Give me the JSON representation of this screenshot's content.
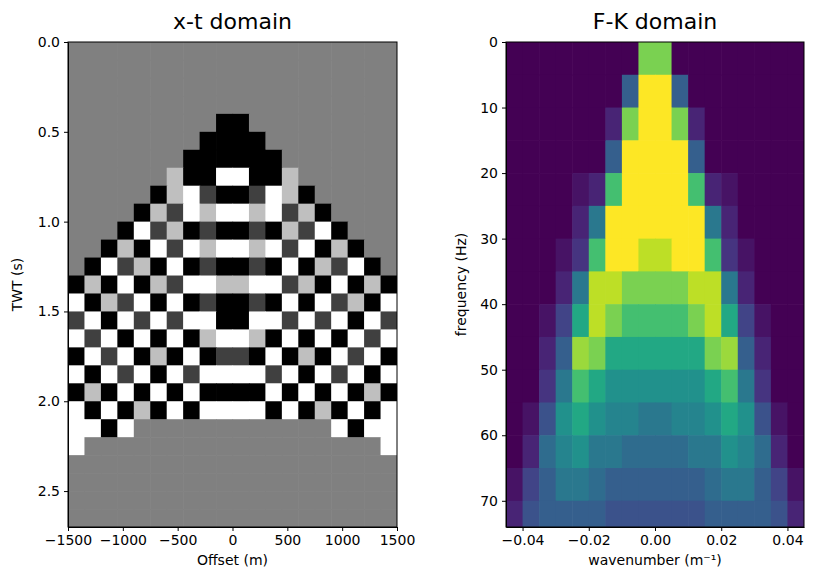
{
  "chart_data": [
    {
      "type": "heatmap",
      "title": "x-t domain",
      "x_label": "Offset (m)",
      "y_label": "TWT (s)",
      "color": "gray",
      "xlim": [
        -1500,
        1500
      ],
      "ylim": [
        0,
        2.7
      ],
      "zlim": [
        -1,
        1
      ],
      "xticks": [
        {
          "value": -1500,
          "label": "−1500"
        },
        {
          "value": -1000,
          "label": "−1000"
        },
        {
          "value": -500,
          "label": "−500"
        },
        0,
        500,
        1000,
        1500
      ],
      "yticks": [
        {
          "value": 0,
          "label": "0.0"
        },
        {
          "value": 0.5,
          "label": "0.5"
        },
        {
          "value": 1,
          "label": "1.0"
        },
        {
          "value": 1.5,
          "label": "1.5"
        },
        {
          "value": 2,
          "label": "2.0"
        },
        {
          "value": 2.5,
          "label": "2.5"
        }
      ],
      "x": [
        -1425,
        -1275,
        -1125,
        -975,
        -825,
        -675,
        -525,
        -375,
        -225,
        -75,
        75,
        225,
        375,
        525,
        675,
        825,
        975,
        1125,
        1275,
        1425
      ],
      "y": [
        0.05,
        0.15,
        0.25,
        0.35,
        0.45,
        0.55,
        0.65,
        0.75,
        0.85,
        0.95,
        1.05,
        1.15,
        1.25,
        1.35,
        1.45,
        1.55,
        1.65,
        1.75,
        1.85,
        1.95,
        2.05,
        2.15,
        2.25,
        2.35,
        2.45,
        2.55,
        2.65
      ],
      "values": [
        [
          0,
          0,
          0,
          0,
          0,
          0,
          0,
          0,
          0,
          0,
          0,
          0,
          0,
          0,
          0,
          0,
          0,
          0,
          0,
          0
        ],
        [
          0,
          0,
          0,
          0,
          0,
          0,
          0,
          0,
          0,
          0,
          0,
          0,
          0,
          0,
          0,
          0,
          0,
          0,
          0,
          0
        ],
        [
          0,
          0,
          0,
          0,
          0,
          0,
          0,
          0,
          0,
          0,
          0,
          0,
          0,
          0,
          0,
          0,
          0,
          0,
          0,
          0
        ],
        [
          0,
          0,
          0,
          0,
          0,
          0,
          0,
          0,
          0,
          0,
          0,
          0,
          0,
          0,
          0,
          0,
          0,
          0,
          0,
          0
        ],
        [
          0,
          0,
          0,
          0,
          0,
          0,
          0,
          0,
          0,
          -1,
          -1,
          0,
          0,
          0,
          0,
          0,
          0,
          0,
          0,
          0
        ],
        [
          0,
          0,
          0,
          0,
          0,
          0,
          0,
          0,
          -1,
          -1,
          -1,
          -1,
          0,
          0,
          0,
          0,
          0,
          0,
          0,
          0
        ],
        [
          0,
          0,
          0,
          0,
          0,
          0,
          0,
          -1,
          -1,
          -1,
          -1,
          -1,
          -1,
          0,
          0,
          0,
          0,
          0,
          0,
          0
        ],
        [
          0,
          0,
          0,
          0,
          0,
          0,
          0.5,
          -1,
          -1,
          1,
          1,
          -1,
          -1,
          0.5,
          0,
          0,
          0,
          0,
          0,
          0
        ],
        [
          0,
          0,
          0,
          0,
          0,
          -1,
          0.5,
          1,
          -0.5,
          -1,
          -1,
          -0.5,
          1,
          0.5,
          -1,
          0,
          0,
          0,
          0,
          0
        ],
        [
          0,
          0,
          0,
          0,
          -1,
          0.5,
          -0.5,
          1,
          0.5,
          1,
          1,
          0.5,
          1,
          -0.5,
          0.5,
          -1,
          0,
          0,
          0,
          0
        ],
        [
          0,
          0,
          0,
          -1,
          1,
          -0.5,
          0.5,
          -1,
          -0.5,
          -1,
          -1,
          -0.5,
          -1,
          0.5,
          -0.5,
          1,
          -1,
          0,
          0,
          0
        ],
        [
          0,
          0,
          -1,
          0.5,
          -1,
          1,
          -0.5,
          1,
          0.5,
          1,
          1,
          0.5,
          1,
          -0.5,
          1,
          -1,
          0.5,
          -1,
          0,
          0
        ],
        [
          0,
          -1,
          1,
          -0.5,
          0.5,
          -1,
          1,
          -1,
          -0.5,
          -1,
          -1,
          -0.5,
          -1,
          1,
          -1,
          0.5,
          -0.5,
          1,
          -1,
          0
        ],
        [
          -1,
          0.5,
          -1,
          1,
          -1,
          0.5,
          -0.5,
          1,
          1,
          0.5,
          0.5,
          1,
          1,
          -0.5,
          0.5,
          -1,
          1,
          -1,
          0.5,
          -1
        ],
        [
          1,
          -1,
          0.5,
          -0.5,
          1,
          -1,
          1,
          -1,
          -0.5,
          -1,
          -1,
          -0.5,
          -1,
          1,
          -1,
          1,
          -0.5,
          0.5,
          -1,
          1
        ],
        [
          -0.5,
          1,
          -1,
          1,
          -0.5,
          1,
          -0.5,
          1,
          1,
          -1,
          -1,
          1,
          1,
          -0.5,
          1,
          -0.5,
          1,
          -1,
          1,
          -0.5
        ],
        [
          1,
          -0.5,
          1,
          -1,
          1,
          -1,
          1,
          -1,
          0.5,
          1,
          1,
          0.5,
          -1,
          1,
          -1,
          1,
          -1,
          1,
          -0.5,
          1
        ],
        [
          -1,
          1,
          -0.5,
          1,
          -1,
          0.5,
          -1,
          1,
          -1,
          -0.5,
          -0.5,
          -1,
          1,
          -1,
          0.5,
          -1,
          1,
          -0.5,
          1,
          -1
        ],
        [
          1,
          -1,
          1,
          -0.5,
          1,
          -1,
          1,
          -0.5,
          1,
          1,
          1,
          1,
          -0.5,
          1,
          -1,
          1,
          -0.5,
          1,
          -1,
          1
        ],
        [
          -1,
          0.5,
          -1,
          1,
          -1,
          1,
          -1,
          1,
          -1,
          -1,
          -1,
          -1,
          1,
          -1,
          1,
          -1,
          1,
          -1,
          0.5,
          -1
        ],
        [
          1,
          -1,
          1,
          -1,
          0.5,
          -1,
          1,
          -1,
          1,
          1,
          1,
          1,
          -1,
          1,
          -1,
          0.5,
          -1,
          1,
          -1,
          1
        ],
        [
          1,
          1,
          -1,
          1,
          0,
          0,
          0,
          0,
          0,
          0,
          0,
          0,
          0,
          0,
          0,
          0,
          1,
          -1,
          1,
          1
        ],
        [
          1,
          0,
          0,
          0,
          0,
          0,
          0,
          0,
          0,
          0,
          0,
          0,
          0,
          0,
          0,
          0,
          0,
          0,
          0,
          1
        ],
        [
          0,
          0,
          0,
          0,
          0,
          0,
          0,
          0,
          0,
          0,
          0,
          0,
          0,
          0,
          0,
          0,
          0,
          0,
          0,
          0
        ],
        [
          0,
          0,
          0,
          0,
          0,
          0,
          0,
          0,
          0,
          0,
          0,
          0,
          0,
          0,
          0,
          0,
          0,
          0,
          0,
          0
        ],
        [
          0,
          0,
          0,
          0,
          0,
          0,
          0,
          0,
          0,
          0,
          0,
          0,
          0,
          0,
          0,
          0,
          0,
          0,
          0,
          0
        ],
        [
          0,
          0,
          0,
          0,
          0,
          0,
          0,
          0,
          0,
          0,
          0,
          0,
          0,
          0,
          0,
          0,
          0,
          0,
          0,
          0
        ]
      ]
    },
    {
      "type": "heatmap",
      "title": "F-K domain",
      "x_label": "wavenumber (m⁻¹)",
      "y_label": "frequency (Hz)",
      "color": "viridis",
      "xlim": [
        -0.045,
        0.045
      ],
      "ylim": [
        0,
        74
      ],
      "zlim": [
        0,
        1
      ],
      "xticks": [
        {
          "value": -0.04,
          "label": "−0.04"
        },
        {
          "value": -0.02,
          "label": "−0.02"
        },
        {
          "value": 0,
          "label": "0.00"
        },
        {
          "value": 0.02,
          "label": "0.02"
        },
        {
          "value": 0.04,
          "label": "0.04"
        }
      ],
      "yticks": [
        0,
        10,
        20,
        30,
        40,
        50,
        60,
        70
      ],
      "x": [
        -0.0425,
        -0.0375,
        -0.0325,
        -0.0275,
        -0.0225,
        -0.0175,
        -0.0125,
        -0.0075,
        -0.0025,
        0.0025,
        0.0075,
        0.0125,
        0.0175,
        0.0225,
        0.0275,
        0.0325,
        0.0375,
        0.0425
      ],
      "y": [
        2.5,
        7.5,
        12.5,
        17.5,
        22.5,
        27.5,
        32.5,
        37.5,
        42.5,
        47.5,
        52.5,
        57.5,
        62.5,
        67.5,
        72.5
      ],
      "values": [
        [
          0,
          0,
          0,
          0,
          0,
          0,
          0,
          0,
          0.8,
          0.8,
          0,
          0,
          0,
          0,
          0,
          0,
          0,
          0
        ],
        [
          0,
          0,
          0,
          0,
          0,
          0,
          0,
          0.3,
          1,
          1,
          0.3,
          0,
          0,
          0,
          0,
          0,
          0,
          0
        ],
        [
          0,
          0,
          0,
          0,
          0,
          0,
          0.1,
          0.8,
          1,
          1,
          0.8,
          0.1,
          0,
          0,
          0,
          0,
          0,
          0
        ],
        [
          0,
          0,
          0,
          0,
          0,
          0,
          0.3,
          1,
          1,
          1,
          1,
          0.3,
          0,
          0,
          0,
          0,
          0,
          0
        ],
        [
          0,
          0,
          0,
          0,
          0.05,
          0.1,
          0.7,
          1,
          1,
          1,
          1,
          0.7,
          0.1,
          0.05,
          0,
          0,
          0,
          0
        ],
        [
          0,
          0,
          0,
          0,
          0.1,
          0.4,
          1,
          1,
          1,
          1,
          1,
          1,
          0.4,
          0.1,
          0,
          0,
          0,
          0
        ],
        [
          0,
          0,
          0,
          0.05,
          0.15,
          0.7,
          1,
          1,
          0.9,
          0.9,
          1,
          1,
          0.7,
          0.15,
          0.05,
          0,
          0,
          0
        ],
        [
          0,
          0,
          0,
          0.1,
          0.4,
          0.9,
          0.9,
          0.8,
          0.8,
          0.8,
          0.8,
          0.9,
          0.9,
          0.4,
          0.1,
          0,
          0,
          0
        ],
        [
          0,
          0,
          0.05,
          0.2,
          0.6,
          0.9,
          0.8,
          0.7,
          0.7,
          0.7,
          0.7,
          0.8,
          0.9,
          0.6,
          0.2,
          0.05,
          0,
          0
        ],
        [
          0,
          0,
          0.1,
          0.3,
          0.85,
          0.8,
          0.6,
          0.6,
          0.6,
          0.6,
          0.6,
          0.6,
          0.8,
          0.85,
          0.3,
          0.1,
          0,
          0
        ],
        [
          0,
          0,
          0.15,
          0.4,
          0.7,
          0.6,
          0.5,
          0.5,
          0.5,
          0.5,
          0.5,
          0.5,
          0.6,
          0.7,
          0.4,
          0.15,
          0,
          0
        ],
        [
          0,
          0.05,
          0.25,
          0.5,
          0.6,
          0.5,
          0.45,
          0.45,
          0.4,
          0.4,
          0.45,
          0.45,
          0.5,
          0.6,
          0.5,
          0.25,
          0.05,
          0
        ],
        [
          0,
          0.1,
          0.35,
          0.45,
          0.5,
          0.4,
          0.4,
          0.35,
          0.35,
          0.35,
          0.35,
          0.4,
          0.4,
          0.5,
          0.45,
          0.35,
          0.1,
          0
        ],
        [
          0.05,
          0.2,
          0.3,
          0.4,
          0.4,
          0.35,
          0.3,
          0.3,
          0.3,
          0.3,
          0.3,
          0.3,
          0.35,
          0.4,
          0.4,
          0.3,
          0.2,
          0.05
        ],
        [
          0.1,
          0.25,
          0.3,
          0.3,
          0.3,
          0.3,
          0.25,
          0.25,
          0.25,
          0.25,
          0.25,
          0.25,
          0.3,
          0.3,
          0.3,
          0.3,
          0.25,
          0.1
        ]
      ]
    }
  ]
}
